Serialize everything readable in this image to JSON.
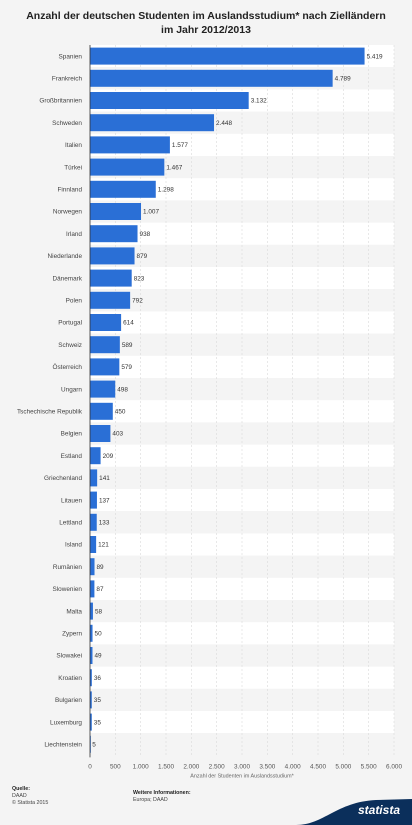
{
  "title": "Anzahl der deutschen Studenten im Auslandsstudium* nach Zielländern im Jahr 2012/2013",
  "footer": {
    "source_label": "Quelle:",
    "source_name": "DAAD",
    "copyright": "© Statista 2015",
    "more_info_label": "Weitere Informationen:",
    "more_info_text": "Europa; DAAD"
  },
  "brand": "statista",
  "colors": {
    "bar": "#2a6fd6",
    "stripe": "#ffffff",
    "stripe_alt": "#f4f4f4"
  },
  "chart_data": {
    "type": "bar",
    "orientation": "horizontal",
    "xlabel": "Anzahl der Studenten im Auslandsstudium*",
    "xlim": [
      0,
      6000
    ],
    "xticks": [
      0,
      500,
      1000,
      1500,
      2000,
      2500,
      3000,
      3500,
      4000,
      4500,
      5000,
      5500,
      6000
    ],
    "xtick_labels": [
      "0",
      "500",
      "1.000",
      "1.500",
      "2.000",
      "2.500",
      "3.000",
      "3.500",
      "4.000",
      "4.500",
      "5.000",
      "5.500",
      "6.000"
    ],
    "categories": [
      "Spanien",
      "Frankreich",
      "Großbritannien",
      "Schweden",
      "Italien",
      "Türkei",
      "Finnland",
      "Norwegen",
      "Irland",
      "Niederlande",
      "Dänemark",
      "Polen",
      "Portugal",
      "Schweiz",
      "Österreich",
      "Ungarn",
      "Tschechische Republik",
      "Belgien",
      "Estland",
      "Griechenland",
      "Litauen",
      "Lettland",
      "Island",
      "Rumänien",
      "Slowenien",
      "Malta",
      "Zypern",
      "Slowakei",
      "Kroatien",
      "Bulgarien",
      "Luxemburg",
      "Liechtenstein"
    ],
    "values": [
      5419,
      4789,
      3132,
      2448,
      1577,
      1467,
      1298,
      1007,
      938,
      879,
      823,
      792,
      614,
      589,
      579,
      498,
      450,
      403,
      209,
      141,
      137,
      133,
      121,
      89,
      87,
      58,
      50,
      49,
      36,
      35,
      35,
      5
    ],
    "value_labels": [
      "5.419",
      "4.789",
      "3.132",
      "2.448",
      "1.577",
      "1.467",
      "1.298",
      "1.007",
      "938",
      "879",
      "823",
      "792",
      "614",
      "589",
      "579",
      "498",
      "450",
      "403",
      "209",
      "141",
      "137",
      "133",
      "121",
      "89",
      "87",
      "58",
      "50",
      "49",
      "36",
      "35",
      "35",
      "5"
    ]
  }
}
